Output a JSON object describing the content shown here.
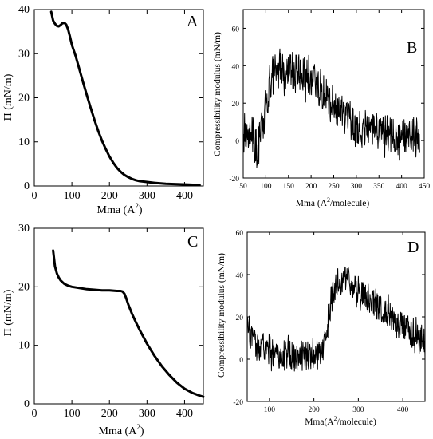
{
  "chart_data": [
    {
      "id": "A",
      "type": "line",
      "letter": "A",
      "xlabel": "Mma (A",
      "xlabel_sup": "2",
      "xlabel_end": ")",
      "ylabel": "Π (mN/m)",
      "xlim": [
        0,
        450
      ],
      "ylim": [
        0,
        40
      ],
      "xticks": [
        0,
        100,
        200,
        300,
        400
      ],
      "yticks": [
        0,
        10,
        20,
        30,
        40
      ],
      "series": [
        {
          "x": [
            45,
            50,
            55,
            60,
            65,
            70,
            75,
            80,
            85,
            90,
            95,
            100,
            110,
            120,
            130,
            140,
            150,
            160,
            170,
            180,
            190,
            200,
            210,
            220,
            230,
            240,
            250,
            260,
            270,
            280,
            300,
            320,
            350,
            380,
            410,
            440
          ],
          "values": [
            39.5,
            37.5,
            36.8,
            36.3,
            36.2,
            36.5,
            36.9,
            37.0,
            36.6,
            35.5,
            33.8,
            32.0,
            29.5,
            26.5,
            23.5,
            20.5,
            17.7,
            15.0,
            12.5,
            10.3,
            8.4,
            6.7,
            5.3,
            4.1,
            3.2,
            2.5,
            2.0,
            1.6,
            1.3,
            1.1,
            0.9,
            0.7,
            0.5,
            0.4,
            0.3,
            0.2
          ]
        }
      ]
    },
    {
      "id": "B",
      "type": "line",
      "letter": "B",
      "xlabel": "Mma (A",
      "xlabel_sup": "2",
      "xlabel_end": "/molecule)",
      "ylabel": "Compressibility modulus (mN/m)",
      "xlim": [
        50,
        450
      ],
      "ylim": [
        -20,
        70
      ],
      "xticks": [
        50,
        100,
        150,
        200,
        250,
        300,
        350,
        400,
        450
      ],
      "yticks": [
        -20,
        0,
        20,
        40,
        60
      ],
      "envelope": {
        "x": [
          50,
          70,
          80,
          90,
          100,
          110,
          120,
          130,
          140,
          160,
          180,
          200,
          220,
          240,
          260,
          280,
          300,
          320,
          340,
          360,
          380,
          400,
          420,
          440
        ],
        "values": [
          5,
          3,
          -4,
          5,
          20,
          30,
          36,
          38,
          38,
          37,
          36,
          33,
          28,
          22,
          16,
          11,
          8,
          6,
          5,
          4,
          4,
          3,
          3,
          2
        ],
        "noise": 10
      }
    },
    {
      "id": "C",
      "type": "line",
      "letter": "C",
      "xlabel": "Mma (A",
      "xlabel_sup": "2",
      "xlabel_end": ")",
      "ylabel": "Π (mN/m)",
      "xlim": [
        0,
        450
      ],
      "ylim": [
        0,
        30
      ],
      "xticks": [
        0,
        100,
        200,
        300,
        400
      ],
      "yticks": [
        0,
        10,
        20,
        30
      ],
      "series": [
        {
          "x": [
            50,
            55,
            60,
            65,
            70,
            80,
            90,
            100,
            120,
            140,
            160,
            180,
            200,
            220,
            230,
            235,
            240,
            245,
            250,
            260,
            270,
            280,
            290,
            300,
            320,
            340,
            360,
            380,
            400,
            420,
            440,
            450
          ],
          "values": [
            26.2,
            23.5,
            22.3,
            21.6,
            21.1,
            20.5,
            20.2,
            20.0,
            19.8,
            19.6,
            19.5,
            19.4,
            19.4,
            19.3,
            19.3,
            19.2,
            18.8,
            18.0,
            17.0,
            15.4,
            14.0,
            12.7,
            11.5,
            10.3,
            8.2,
            6.4,
            4.9,
            3.6,
            2.6,
            1.9,
            1.4,
            1.2
          ]
        }
      ]
    },
    {
      "id": "D",
      "type": "line",
      "letter": "D",
      "xlabel": "Mma(A",
      "xlabel_sup": "2",
      "xlabel_end": "/molecule)",
      "ylabel": "Compressibility modulus (mN/m)",
      "xlim": [
        50,
        450
      ],
      "ylim": [
        -20,
        60
      ],
      "xticks": [
        100,
        200,
        300,
        400
      ],
      "yticks": [
        -20,
        0,
        20,
        40,
        60
      ],
      "envelope": {
        "x": [
          50,
          60,
          80,
          100,
          150,
          200,
          220,
          230,
          240,
          250,
          270,
          300,
          330,
          360,
          400,
          430,
          450
        ],
        "values": [
          15,
          10,
          5,
          3,
          2,
          2,
          3,
          15,
          30,
          35,
          38,
          33,
          28,
          22,
          15,
          11,
          10
        ],
        "noise": 7
      }
    }
  ]
}
